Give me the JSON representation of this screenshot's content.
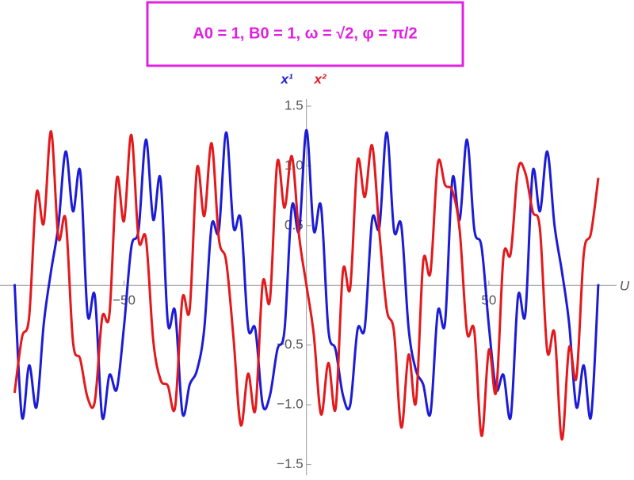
{
  "chart_data": {
    "type": "line",
    "title": "A0 = 1,  B0 = 1,  ω = √2,  φ = π/2",
    "x_label": "U",
    "x": [
      -80,
      -78,
      -76,
      -74,
      -72,
      -70,
      -68,
      -66,
      -64,
      -62,
      -60,
      -58,
      -56,
      -54,
      -52,
      -50,
      -48,
      -46,
      -44,
      -42,
      -40,
      -38,
      -36,
      -34,
      -32,
      -30,
      -28,
      -26,
      -24,
      -22,
      -20,
      -18,
      -16,
      -14,
      -12,
      -10,
      -8,
      -6,
      -4,
      -2,
      0,
      2,
      4,
      6,
      8,
      10,
      12,
      14,
      16,
      18,
      20,
      22,
      24,
      26,
      28,
      30,
      32,
      34,
      36,
      38,
      40,
      42,
      44,
      46,
      48,
      50,
      52,
      54,
      56,
      58,
      60,
      62,
      64,
      66,
      68,
      70,
      72,
      74,
      76,
      78,
      80
    ],
    "series": [
      {
        "name": "x¹",
        "color": "#1c1cd6",
        "values": [
          0.01,
          -1.1,
          -0.67,
          -1.02,
          -0.32,
          0.12,
          0.5,
          1.12,
          0.62,
          0.95,
          -0.24,
          -0.09,
          -1.1,
          -0.75,
          -0.87,
          -0.34,
          0.32,
          0.47,
          1.22,
          0.55,
          0.89,
          -0.31,
          -0.22,
          -1.07,
          -0.83,
          -0.71,
          -0.36,
          0.5,
          0.46,
          1.28,
          0.49,
          0.55,
          -0.35,
          -0.37,
          -1.0,
          -0.92,
          -0.54,
          -0.37,
          0.66,
          0.46,
          1.3,
          0.46,
          0.66,
          -0.37,
          -0.54,
          -0.92,
          -1.0,
          -0.37,
          -0.35,
          0.55,
          0.49,
          1.28,
          0.46,
          0.5,
          -0.36,
          -0.71,
          -0.83,
          -1.07,
          -0.22,
          -0.31,
          0.89,
          0.55,
          1.22,
          0.47,
          0.32,
          -0.34,
          -0.87,
          -0.75,
          -1.1,
          -0.09,
          -0.24,
          0.95,
          0.62,
          1.12,
          0.5,
          0.12,
          -0.32,
          -1.02,
          -0.67,
          -1.1,
          0.01
        ]
      },
      {
        "name": "x²",
        "color": "#e3191c",
        "values": [
          -0.9,
          -0.44,
          -0.26,
          0.77,
          0.52,
          1.29,
          0.4,
          0.55,
          -0.47,
          -0.62,
          -0.94,
          -0.97,
          -0.27,
          -0.24,
          0.89,
          0.54,
          1.26,
          0.38,
          0.39,
          -0.46,
          -0.79,
          -0.84,
          -1.02,
          -0.11,
          -0.2,
          0.98,
          0.58,
          1.19,
          0.39,
          0.2,
          -0.44,
          -1.17,
          -0.74,
          -1.04,
          0.02,
          -0.12,
          1.03,
          0.65,
          1.08,
          0.41,
          0,
          -0.41,
          -1.08,
          -0.65,
          -1.03,
          0.12,
          -0.02,
          1.04,
          0.74,
          1.17,
          0.44,
          -0.2,
          -0.39,
          -1.19,
          -0.58,
          -0.98,
          0.2,
          0.11,
          1.02,
          0.84,
          0.79,
          0.46,
          -0.39,
          -0.38,
          -1.26,
          -0.54,
          -0.89,
          0.24,
          0.27,
          0.97,
          0.94,
          0.62,
          0.47,
          -0.55,
          -0.4,
          -1.29,
          -0.52,
          -0.77,
          0.26,
          0.44,
          0.9
        ]
      }
    ],
    "xlim": [
      -84,
      85
    ],
    "ylim": [
      -1.59,
      1.56
    ],
    "xticks": [
      {
        "value": -50,
        "label": "−50"
      },
      50
    ],
    "yticks": [
      {
        "value": -1.5,
        "label": "−1.5"
      },
      {
        "value": -1.0,
        "label": "−1.0"
      },
      {
        "value": -0.5,
        "label": "−0.5"
      },
      0.5,
      {
        "value": 1.0,
        "label": "1.0"
      },
      1.5
    ],
    "title_color": "#e020e0",
    "grid": false
  }
}
